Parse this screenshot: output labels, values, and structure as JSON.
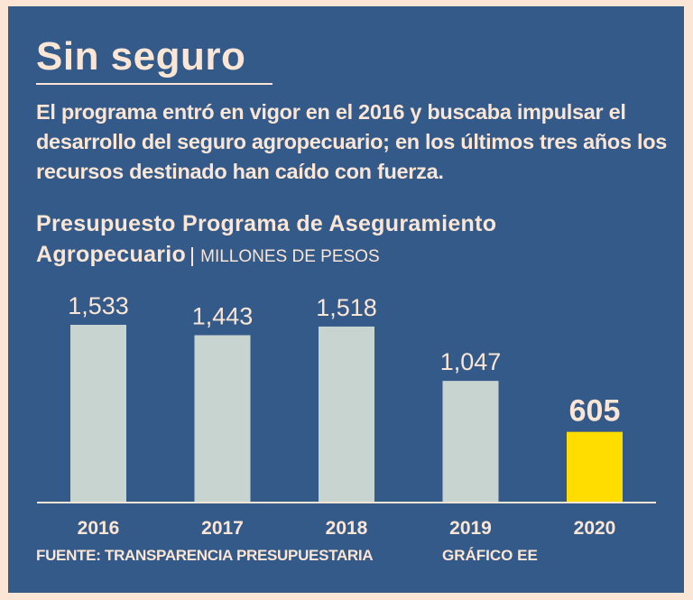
{
  "header": {
    "title": "Sin seguro",
    "description": "El programa entró en vigor en el 2016 y buscaba impulsar el desarrollo del seguro agropecuario; en los últimos tres años los recursos destinado han caído con fuerza."
  },
  "chart_data": {
    "type": "bar",
    "title": "Presupuesto Programa de Aseguramiento Agropecuario",
    "unit": "MILLONES DE PESOS",
    "categories": [
      "2016",
      "2017",
      "2018",
      "2019",
      "2020"
    ],
    "values": [
      1533,
      1443,
      1518,
      1047,
      605
    ],
    "labels": [
      "1,533",
      "1,443",
      "1,518",
      "1,047",
      "605"
    ],
    "ylim": [
      0,
      1600
    ],
    "grid": false,
    "colors": {
      "default": "#c8d4d0",
      "highlight": "#ffdd00",
      "highlight_category": "2020"
    }
  },
  "footer": {
    "source": "FUENTE: TRANSPARENCIA PRESUPUESTARIA",
    "credit": "GRÁFICO EE"
  }
}
